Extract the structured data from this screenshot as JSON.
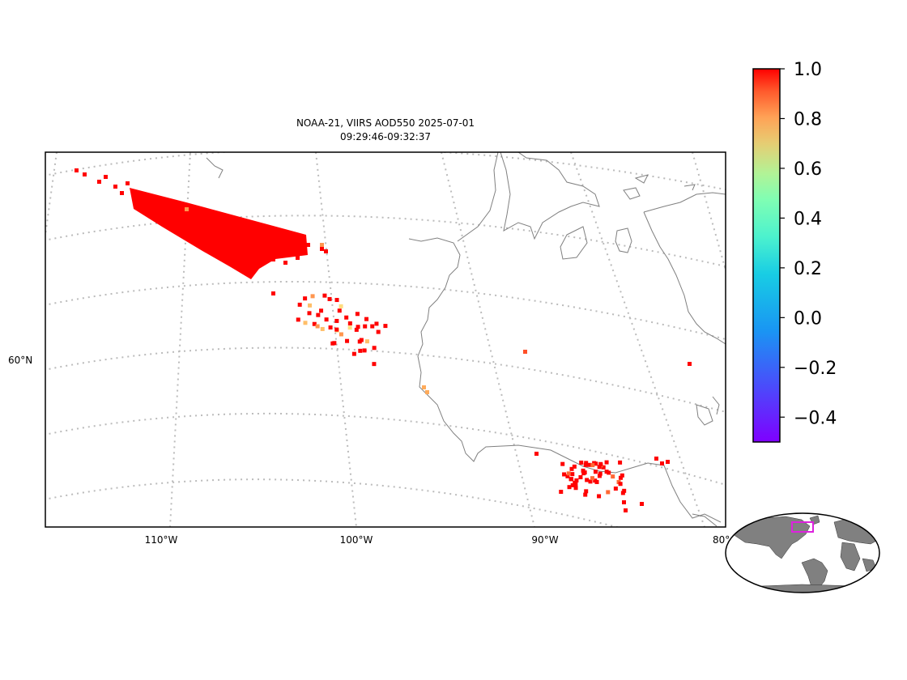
{
  "title": {
    "line1": "NOAA-21, VIIRS AOD550 2025-07-01",
    "line2": "09:29:46-09:32:37"
  },
  "map": {
    "lon_labels": [
      "110°W",
      "100°W",
      "90°W",
      "80°"
    ],
    "lat_labels": [
      "60°N"
    ],
    "gridlines": "dotted",
    "coastline_color": "#808080",
    "gridline_color": "#bbbbbb"
  },
  "colorbar": {
    "colormap": "rainbow",
    "vmin": -0.5,
    "vmax": 1.0,
    "ticks": [
      "1.0",
      "0.8",
      "0.6",
      "0.4",
      "0.2",
      "0.0",
      "−0.2",
      "−0.4"
    ],
    "tick_values": [
      1.0,
      0.8,
      0.6,
      0.4,
      0.2,
      0.0,
      -0.2,
      -0.4
    ]
  },
  "inset": {
    "land_color": "#808080",
    "highlight_color": "#dd22dd"
  },
  "chart_data": {
    "type": "scatter",
    "value_name": "AOD550",
    "clusters": [
      {
        "region": "northwest band",
        "dominant_value": 1.0,
        "secondary_values": [
          0.7,
          0.5
        ]
      },
      {
        "region": "central cluster",
        "dominant_value": 1.0,
        "secondary_values": [
          0.7,
          0.6,
          0.5
        ]
      },
      {
        "region": "coastal point",
        "dominant_value": 0.65
      },
      {
        "region": "isolated east point",
        "dominant_value": 0.85
      },
      {
        "region": "far east point",
        "dominant_value": 1.0
      },
      {
        "region": "southeast cluster",
        "dominant_value": 1.0,
        "secondary_values": [
          0.8
        ]
      }
    ]
  }
}
